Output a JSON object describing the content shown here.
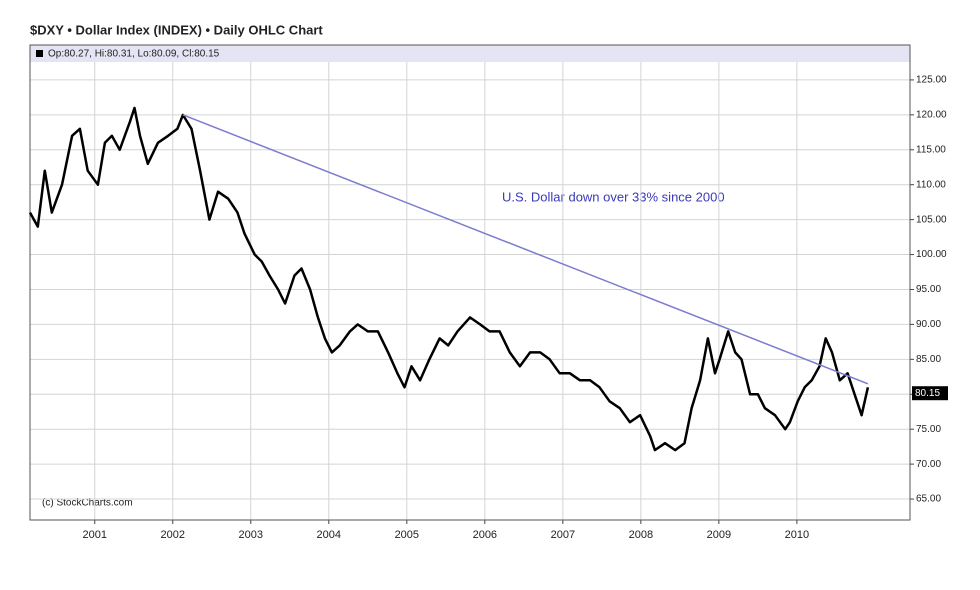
{
  "chart_data": {
    "type": "line",
    "title": "$DXY • Dollar Index (INDEX) • Daily OHLC Chart",
    "legend": "Op:80.27, Hi:80.31, Lo:80.09, Cl:80.15",
    "annotation": "U.S. Dollar down over 33% since 2000",
    "watermark": "(c) StockCharts.com",
    "last_price": {
      "value": 80.15,
      "label": "80.15"
    },
    "color": "#000000",
    "trendline": {
      "color": "#7b7bd0",
      "x": [
        2002.13,
        2010.91
      ],
      "y": [
        120,
        81.5
      ]
    },
    "xlim": [
      2000.17,
      2011.45
    ],
    "xticks": [
      2001,
      2002,
      2003,
      2004,
      2005,
      2006,
      2007,
      2008,
      2009,
      2010
    ],
    "ylim": [
      62,
      130
    ],
    "yticks": [
      {
        "value": 65,
        "label": "65.00"
      },
      {
        "value": 70,
        "label": "70.00"
      },
      {
        "value": 75,
        "label": "75.00"
      },
      {
        "value": 80,
        "label": "80.00"
      },
      {
        "value": 85,
        "label": "85.00"
      },
      {
        "value": 90,
        "label": "90.00"
      },
      {
        "value": 95,
        "label": "95.00"
      },
      {
        "value": 100,
        "label": "100.00"
      },
      {
        "value": 105,
        "label": "105.00"
      },
      {
        "value": 110,
        "label": "110.00"
      },
      {
        "value": 115,
        "label": "115.00"
      },
      {
        "value": 120,
        "label": "120.00"
      },
      {
        "value": 125,
        "label": "125.00"
      }
    ],
    "grid": true,
    "x": [
      2000.17,
      2000.27,
      2000.36,
      2000.45,
      2000.58,
      2000.71,
      2000.81,
      2000.91,
      2001.04,
      2001.13,
      2001.22,
      2001.32,
      2001.45,
      2001.51,
      2001.58,
      2001.68,
      2001.81,
      2001.94,
      2002.06,
      2002.13,
      2002.24,
      2002.35,
      2002.47,
      2002.58,
      2002.71,
      2002.83,
      2002.92,
      2003.05,
      2003.14,
      2003.24,
      2003.35,
      2003.44,
      2003.56,
      2003.65,
      2003.76,
      2003.86,
      2003.95,
      2004.04,
      2004.14,
      2004.27,
      2004.37,
      2004.5,
      2004.63,
      2004.76,
      2004.88,
      2004.97,
      2005.06,
      2005.17,
      2005.29,
      2005.42,
      2005.53,
      2005.65,
      2005.81,
      2005.94,
      2006.06,
      2006.19,
      2006.32,
      2006.45,
      2006.58,
      2006.71,
      2006.83,
      2006.96,
      2007.09,
      2007.22,
      2007.35,
      2007.47,
      2007.6,
      2007.73,
      2007.86,
      2007.99,
      2008.12,
      2008.18,
      2008.31,
      2008.44,
      2008.56,
      2008.65,
      2008.76,
      2008.86,
      2008.95,
      2009.01,
      2009.12,
      2009.21,
      2009.29,
      2009.4,
      2009.5,
      2009.59,
      2009.72,
      2009.85,
      2009.91,
      2010.01,
      2010.1,
      2010.19,
      2010.29,
      2010.37,
      2010.45,
      2010.55,
      2010.65,
      2010.74,
      2010.83,
      2010.91
    ],
    "values": [
      106,
      104,
      112,
      106,
      110,
      117,
      118,
      112,
      110,
      116,
      117,
      115,
      119,
      121,
      117,
      113,
      116,
      117,
      118,
      120,
      118,
      112,
      105,
      109,
      108,
      106,
      103,
      100,
      99,
      97,
      95,
      93,
      97,
      98,
      95,
      91,
      88,
      86,
      87,
      89,
      90,
      89,
      89,
      86,
      83,
      81,
      84,
      82,
      85,
      88,
      87,
      89,
      91,
      90,
      89,
      89,
      86,
      84,
      86,
      86,
      85,
      83,
      83,
      82,
      82,
      81,
      79,
      78,
      76,
      77,
      74,
      72,
      73,
      72,
      73,
      78,
      82,
      88,
      83,
      85,
      89,
      86,
      85,
      80,
      80,
      78,
      77,
      75,
      76,
      79,
      81,
      82,
      84,
      88,
      86,
      82,
      83,
      80,
      77,
      81
    ]
  }
}
